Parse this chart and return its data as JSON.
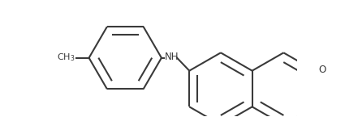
{
  "background_color": "#ffffff",
  "line_color": "#3a3a3a",
  "line_width": 1.5,
  "fig_width": 4.25,
  "fig_height": 1.45,
  "dpi": 100,
  "font_size": 8.5
}
